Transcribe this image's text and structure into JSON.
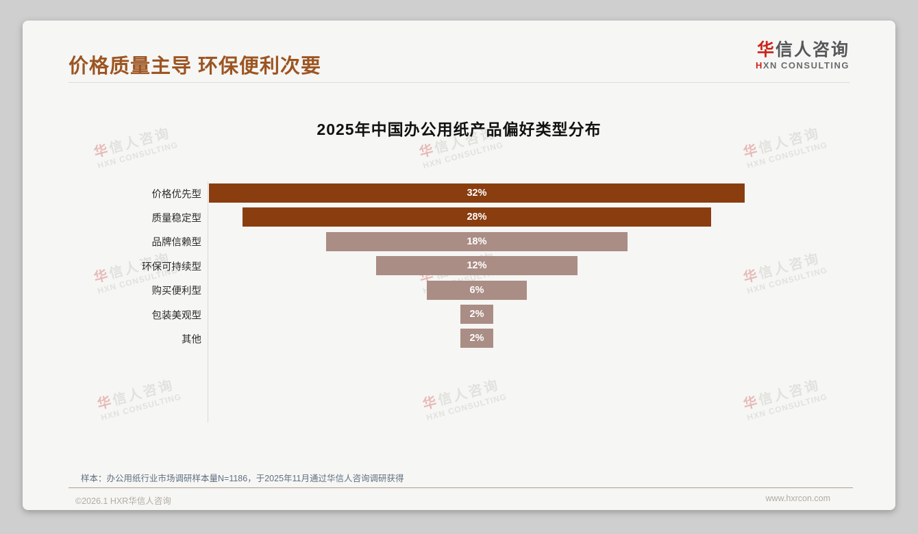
{
  "header": {
    "title": "价格质量主导 环保便利次要",
    "title_color": "#9C5522",
    "logo": {
      "cn_first": "华",
      "cn_rest": "信人咨询",
      "en_first": "H",
      "en_rest": "XN CONSULTING",
      "accent_color": "#C9251C"
    }
  },
  "watermark": {
    "cn_first": "华",
    "cn_rest": "信人咨询",
    "en": "HXN CONSULTING"
  },
  "chart_data": {
    "type": "bar",
    "variant": "horizontal-centered-funnel",
    "title": "2025年中国办公用纸产品偏好类型分布",
    "categories": [
      "价格优先型",
      "质量稳定型",
      "品牌信赖型",
      "环保可持续型",
      "购买便利型",
      "包装美观型",
      "其他"
    ],
    "values": [
      32,
      28,
      18,
      12,
      6,
      2,
      2
    ],
    "labels": [
      "32%",
      "28%",
      "18%",
      "12%",
      "6%",
      "2%",
      "2%"
    ],
    "unit": "%",
    "bar_colors": [
      "#8A3D0F",
      "#8A3D0F",
      "#AA8D85",
      "#AA8D85",
      "#AA8D85",
      "#AA8D85",
      "#AA8D85"
    ],
    "value_label_color": "#ffffff",
    "axis_line": true,
    "legend": "none",
    "xlim": [
      0,
      34
    ]
  },
  "footnote": {
    "text": "样本：办公用纸行业市场调研样本量N=1186，于2025年11月通过华信人咨询调研获得"
  },
  "footer": {
    "copyright": "©2026.1 HXR华信人咨询",
    "website": "www.hxrcon.com"
  }
}
